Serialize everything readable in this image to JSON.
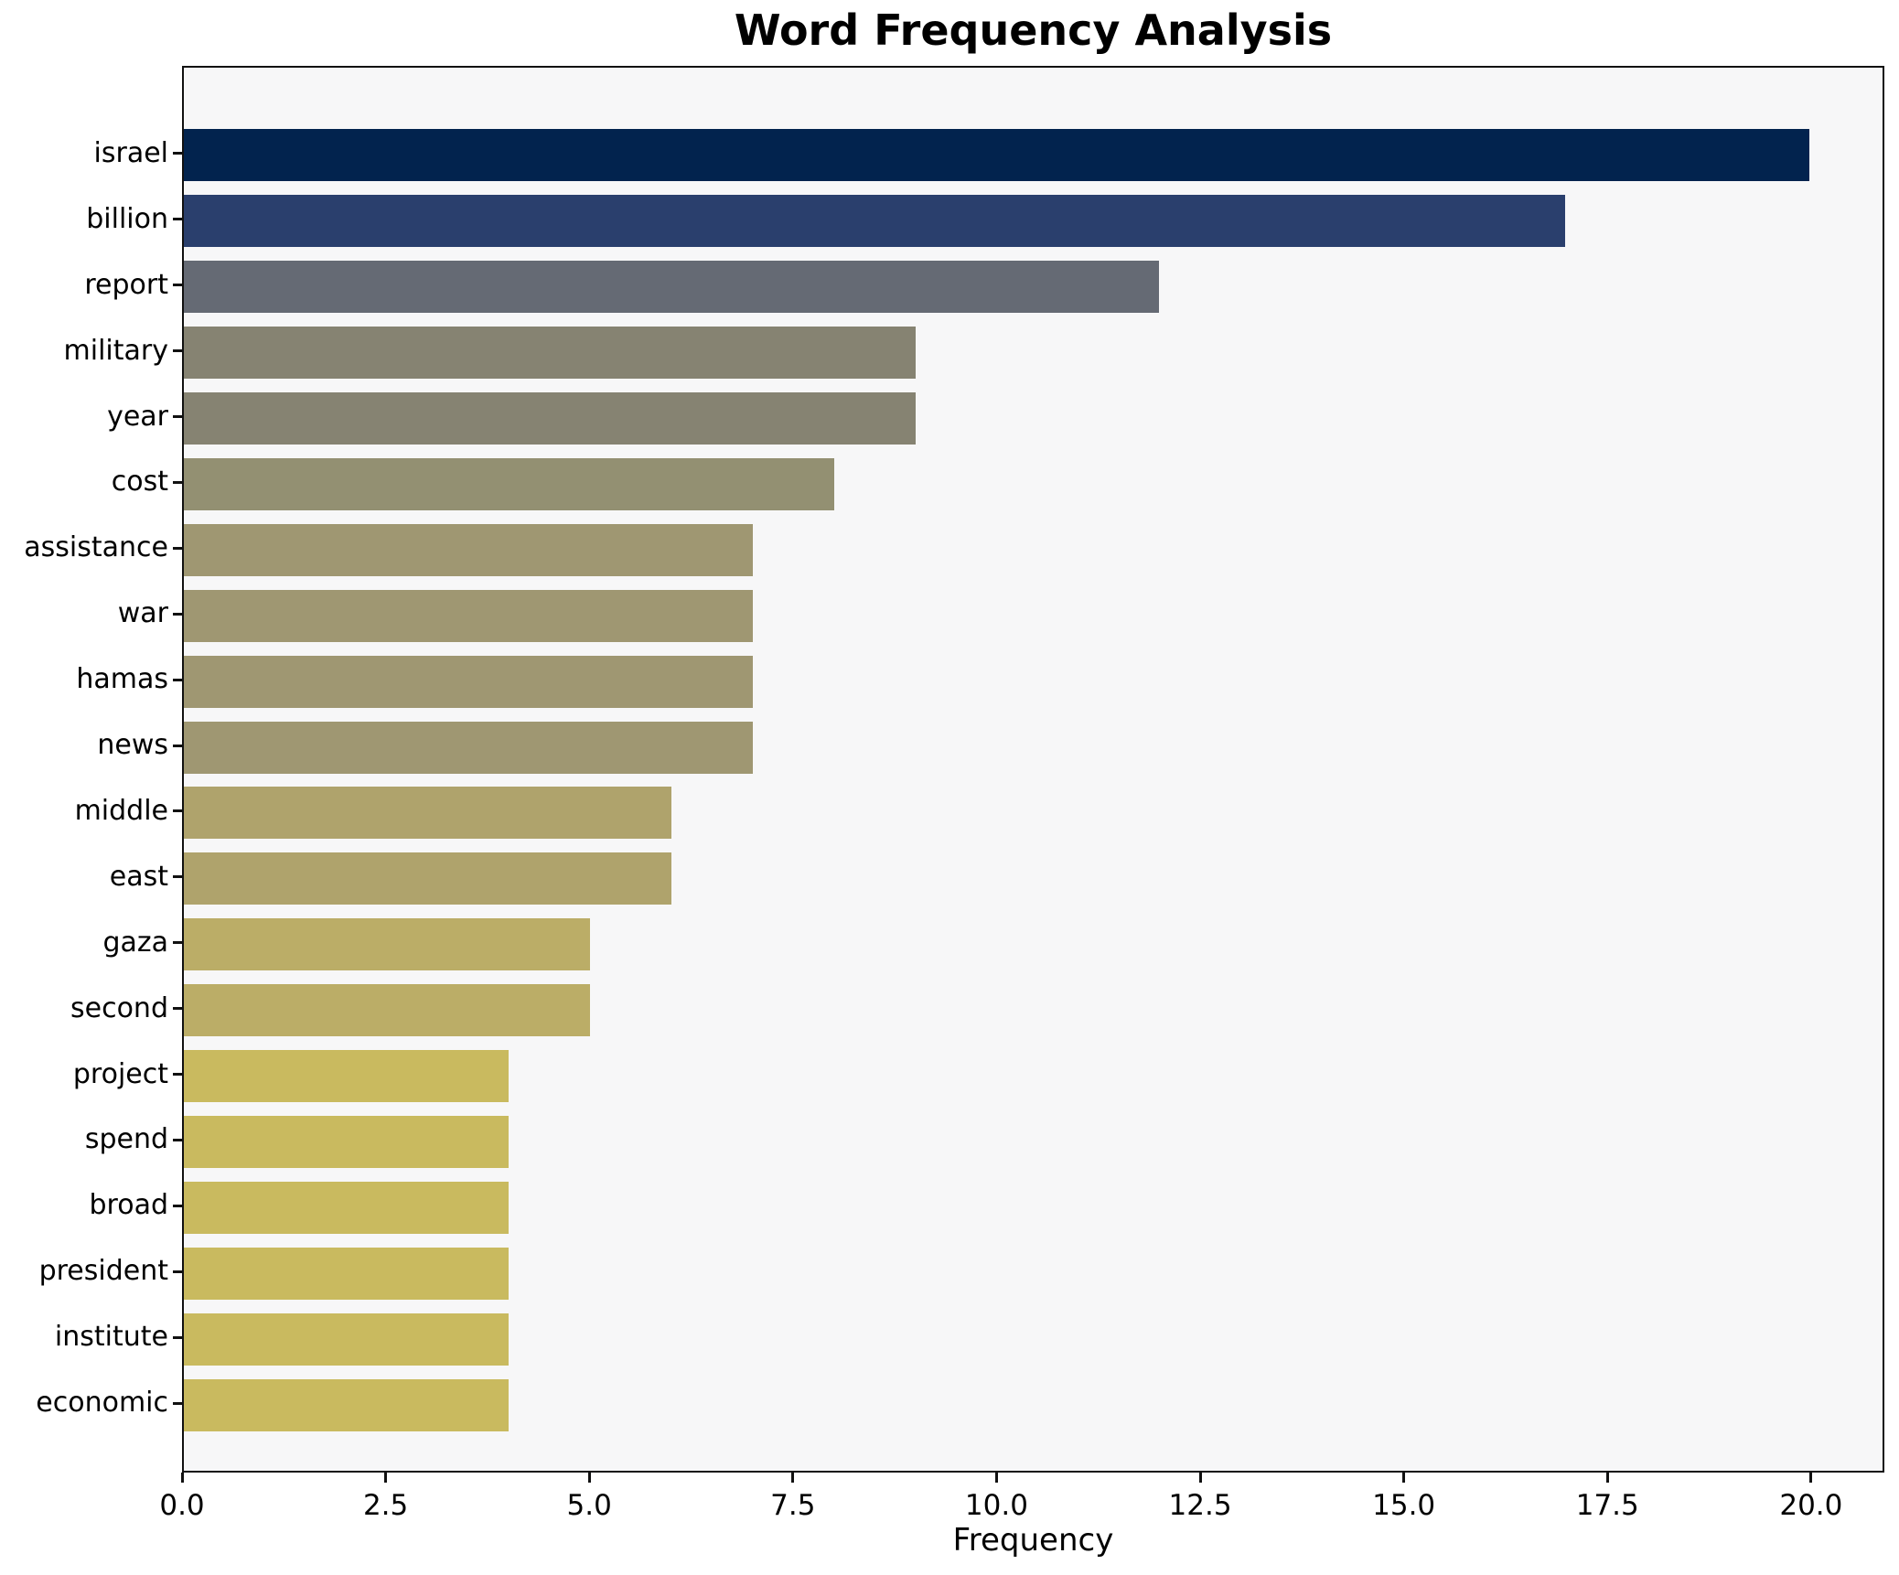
{
  "title": "Word Frequency Analysis",
  "chart_data": {
    "type": "bar",
    "orientation": "horizontal",
    "title": "Word Frequency Analysis",
    "xlabel": "Frequency",
    "ylabel": "",
    "categories": [
      "israel",
      "billion",
      "report",
      "military",
      "year",
      "cost",
      "assistance",
      "war",
      "hamas",
      "news",
      "middle",
      "east",
      "gaza",
      "second",
      "project",
      "spend",
      "broad",
      "president",
      "institute",
      "economic"
    ],
    "values": [
      20,
      17,
      12,
      9,
      9,
      8,
      7,
      7,
      7,
      7,
      6,
      6,
      5,
      5,
      4,
      4,
      4,
      4,
      4,
      4
    ],
    "bar_colors": [
      "#02234e",
      "#2a3f6d",
      "#656a74",
      "#868372",
      "#868372",
      "#939072",
      "#9f9772",
      "#9f9772",
      "#9f9772",
      "#9f9772",
      "#afa36c",
      "#afa36c",
      "#bbad67",
      "#bbad67",
      "#c9ba5f",
      "#c9ba5f",
      "#c9ba5f",
      "#c9ba5f",
      "#c9ba5f",
      "#c9ba5f"
    ],
    "colormap": "cividis",
    "x_ticks": [
      0.0,
      2.5,
      5.0,
      7.5,
      10.0,
      12.5,
      15.0,
      17.5,
      20.0
    ],
    "x_tick_labels": [
      "0.0",
      "2.5",
      "5.0",
      "7.5",
      "10.0",
      "12.5",
      "15.0",
      "17.5",
      "20.0"
    ],
    "xlim": [
      0,
      20.9
    ],
    "grid": false,
    "legend": null,
    "plot_background": "#f7f7f8",
    "figure_background": "#ffffff"
  }
}
